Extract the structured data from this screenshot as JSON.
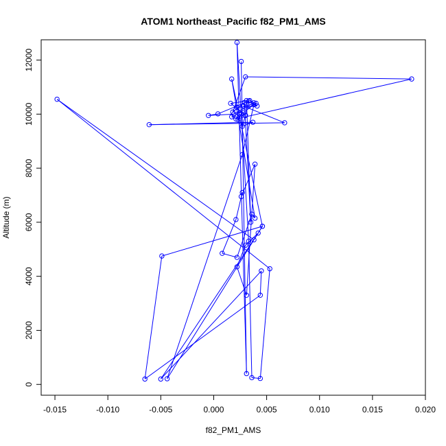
{
  "chart_data": {
    "type": "line",
    "title": "ATOM1 Northeast_Pacific f82_PM1_AMS",
    "xlabel": "f82_PM1_AMS",
    "ylabel": "Altitude (m)",
    "xlim": [
      -0.0163,
      0.02
    ],
    "ylim": [
      -400,
      12750
    ],
    "xticks": [
      -0.015,
      -0.01,
      -0.005,
      0.0,
      0.005,
      0.01,
      0.015,
      0.02
    ],
    "xtick_labels": [
      "-0.015",
      "-0.010",
      "-0.005",
      "0.000",
      "0.005",
      "0.010",
      "0.015",
      "0.020"
    ],
    "yticks": [
      0,
      2000,
      4000,
      6000,
      8000,
      10000,
      12000
    ],
    "ytick_labels": [
      "0",
      "2000",
      "4000",
      "6000",
      "8000",
      "10000",
      "12000"
    ],
    "grid": false,
    "legend": "none",
    "series": [
      {
        "color": "#0000ff",
        "marker": "open-circle",
        "line": true,
        "x": [
          0.0026,
          0.0031,
          0.0022,
          0.0033,
          0.0036,
          0.0044,
          0.0053,
          -0.0148,
          0.0038,
          0.0046,
          -0.0049,
          -0.0065,
          0.0044,
          0.0045,
          -0.005,
          0.0042,
          0.003,
          0.0022,
          0.0031,
          0.0039,
          0.0026,
          0.0027,
          0.0021,
          0.0008,
          0.0022,
          0.0036,
          0.0039,
          0.0017,
          0.0046,
          -0.0044,
          0.0027,
          0.0038,
          0.0026,
          0.0023,
          0.0017,
          0.004,
          0.0028,
          0.0067,
          -0.0061,
          0.0037,
          0.0027,
          0.003,
          0.0033,
          0.0004,
          -0.0005,
          0.0019,
          0.0038,
          0.0034,
          0.0016,
          0.003,
          0.0024,
          0.0021,
          0.0187,
          0.003,
          0.0018,
          0.0029,
          0.0035,
          0.0031,
          0.0041,
          0.0022
        ],
        "y": [
          11950,
          400,
          12650,
          5300,
          250,
          220,
          4280,
          10550,
          5350,
          5850,
          4750,
          200,
          3300,
          4200,
          200,
          5600,
          5150,
          4350,
          3300,
          8150,
          6950,
          7100,
          6100,
          4850,
          4700,
          6300,
          6150,
          11300,
          5850,
          210,
          8500,
          10350,
          10000,
          9800,
          9900,
          10400,
          10300,
          9680,
          9610,
          9700,
          9550,
          9960,
          10480,
          10010,
          9950,
          10000,
          10420,
          10500,
          10400,
          9950,
          10000,
          9820,
          11300,
          11380,
          10080,
          10430,
          6000,
          10500,
          10300,
          10250
        ]
      }
    ]
  }
}
